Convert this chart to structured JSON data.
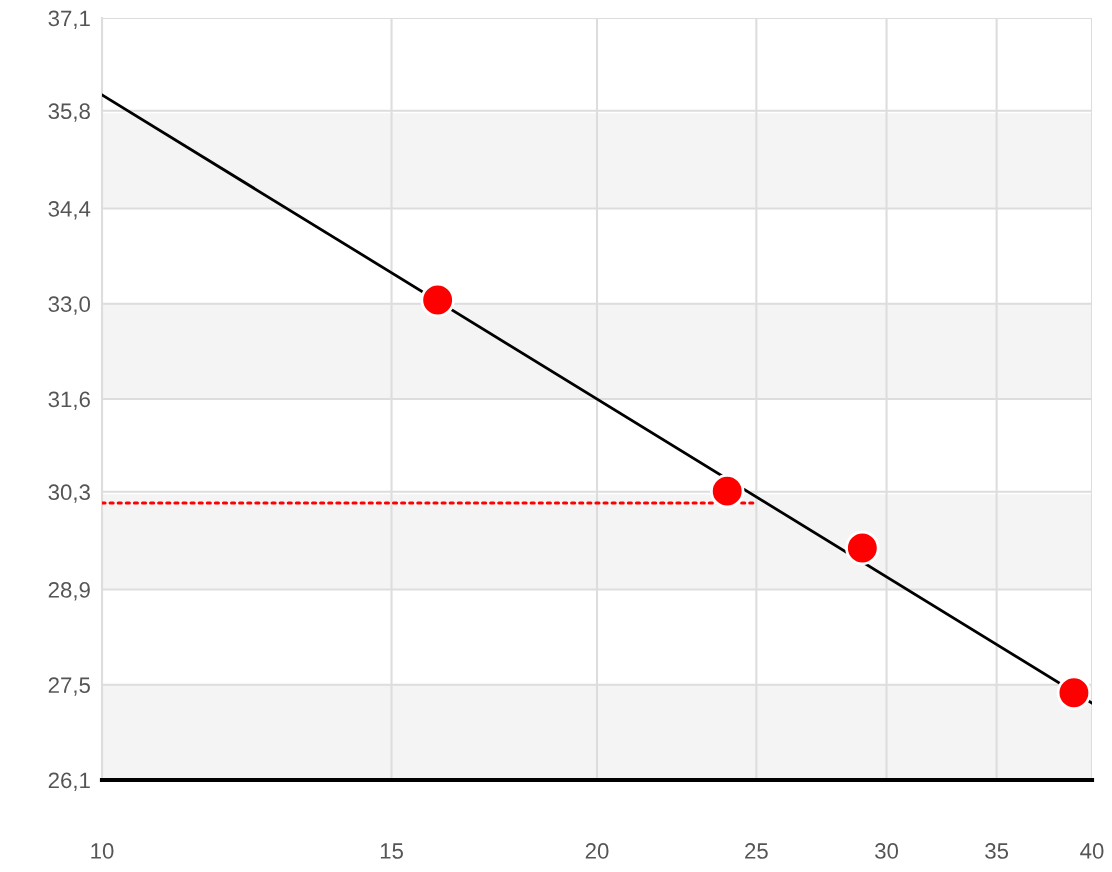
{
  "chart_data": {
    "type": "scatter",
    "log": "x",
    "grid": true,
    "marker": "circle",
    "xlim": [
      10,
      40
    ],
    "xticks": [
      10,
      15,
      20,
      25,
      30,
      35,
      40
    ],
    "ylim": [
      26.1,
      37.1
    ],
    "yticks": [
      {
        "value": 26.1,
        "label": "26,1"
      },
      {
        "value": 27.475,
        "label": "27,5"
      },
      {
        "value": 28.85,
        "label": "28,9"
      },
      {
        "value": 30.26,
        "label": "30,3"
      },
      {
        "value": 31.6,
        "label": "31,6"
      },
      {
        "value": 32.975,
        "label": "33,0"
      },
      {
        "value": 34.35,
        "label": "34,4"
      },
      {
        "value": 35.76,
        "label": "35,8"
      },
      {
        "value": 37.1,
        "label": "37,1"
      }
    ],
    "ref_lines": [
      {
        "axis": "y",
        "value": 26.1,
        "color": "#000000",
        "line_style": "solid"
      }
    ],
    "bands": [
      {
        "axis": "y",
        "from": 26.1,
        "to": 27.475,
        "color": "#f4f4f4"
      },
      {
        "axis": "y",
        "from": 28.85,
        "to": 30.225,
        "color": "#f4f4f4"
      },
      {
        "axis": "y",
        "from": 31.6,
        "to": 32.975,
        "color": "#f4f4f4"
      },
      {
        "axis": "y",
        "from": 34.35,
        "to": 35.725,
        "color": "#f4f4f4"
      }
    ],
    "series": [
      {
        "type": "line",
        "color": "#000000",
        "x": [
          10,
          40
        ],
        "values": [
          35.99,
          27.21
        ],
        "marker": "none",
        "line_style": "solid"
      },
      {
        "type": "line",
        "color": "#ff0000",
        "x": [
          10,
          25
        ],
        "values": [
          30.1,
          30.1
        ],
        "marker": "none",
        "line_style": "dotted"
      },
      {
        "color": "#ff0000",
        "x": [
          16,
          24,
          29,
          39
        ],
        "values": [
          33.03,
          30.27,
          29.45,
          27.36
        ]
      }
    ]
  }
}
